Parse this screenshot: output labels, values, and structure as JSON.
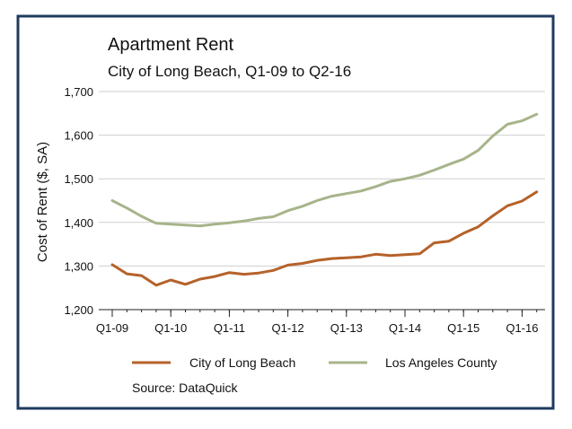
{
  "colors": {
    "border": "#1f3b5e",
    "background": "#ffffff",
    "gridline": "#cfcfcf",
    "axis": "#222222",
    "long_beach": "#b5622a",
    "la_county": "#a7b48a"
  },
  "chart_data": {
    "type": "line",
    "title": "Apartment Rent",
    "subtitle": "City of Long Beach, Q1-09 to Q2-16",
    "ylabel": "Cost of Rent ($, SA)",
    "xlabel": "",
    "ylim": [
      1200,
      1700
    ],
    "yticks": [
      1200,
      1300,
      1400,
      1500,
      1600,
      1700
    ],
    "ytick_labels": [
      "1,200",
      "1,300",
      "1,400",
      "1,500",
      "1,600",
      "1,700"
    ],
    "xtick_labels": [
      "Q1-09",
      "Q1-10",
      "Q1-11",
      "Q1-12",
      "Q1-13",
      "Q1-14",
      "Q1-15",
      "Q1-16"
    ],
    "x": [
      "Q1-09",
      "Q2-09",
      "Q3-09",
      "Q4-09",
      "Q1-10",
      "Q2-10",
      "Q3-10",
      "Q4-10",
      "Q1-11",
      "Q2-11",
      "Q3-11",
      "Q4-11",
      "Q1-12",
      "Q2-12",
      "Q3-12",
      "Q4-12",
      "Q1-13",
      "Q2-13",
      "Q3-13",
      "Q4-13",
      "Q1-14",
      "Q2-14",
      "Q3-14",
      "Q4-14",
      "Q1-15",
      "Q2-15",
      "Q3-15",
      "Q4-15",
      "Q1-16",
      "Q2-16"
    ],
    "grid": true,
    "legend_placement": "bottom",
    "series": [
      {
        "name": "City of Long Beach",
        "color": "#b5622a",
        "values": [
          1303,
          1282,
          1278,
          1256,
          1268,
          1258,
          1270,
          1276,
          1285,
          1281,
          1284,
          1290,
          1302,
          1306,
          1313,
          1317,
          1319,
          1321,
          1327,
          1324,
          1326,
          1328,
          1353,
          1357,
          1375,
          1390,
          1415,
          1438,
          1449,
          1470
        ]
      },
      {
        "name": "Los Angeles County",
        "color": "#a7b48a",
        "values": [
          1450,
          1433,
          1414,
          1398,
          1396,
          1394,
          1392,
          1396,
          1399,
          1403,
          1409,
          1413,
          1427,
          1437,
          1450,
          1460,
          1466,
          1472,
          1482,
          1494,
          1500,
          1508,
          1520,
          1533,
          1545,
          1565,
          1598,
          1625,
          1633,
          1648
        ]
      }
    ],
    "source": "Source: DataQuick"
  }
}
